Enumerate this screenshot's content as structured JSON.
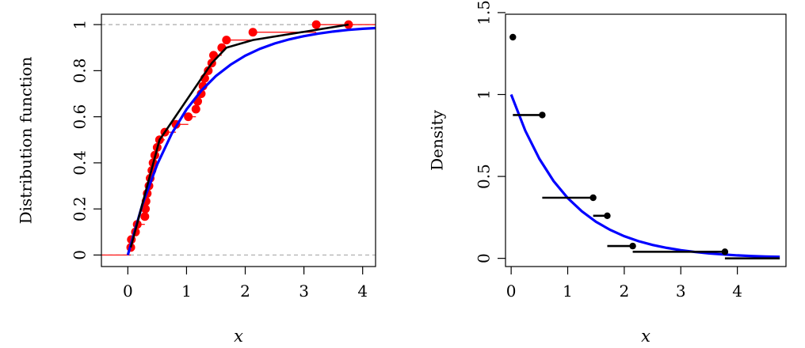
{
  "chart_data": [
    {
      "type": "line",
      "xlabel": "x",
      "ylabel": "Distribution function",
      "xlim": [
        -0.45,
        4.22
      ],
      "ylim": [
        -0.05,
        1.045
      ],
      "x_ticks": [
        0,
        1,
        2,
        3,
        4
      ],
      "y_ticks": [
        0,
        0.2,
        0.4,
        0.6,
        0.8,
        1
      ],
      "x_tick_labels": [
        "0",
        "1",
        "2",
        "3",
        "4"
      ],
      "y_tick_labels": [
        "0",
        "0.2",
        "0.4",
        "0.6",
        "0.8",
        "1"
      ],
      "reference_lines_y": [
        0,
        1
      ],
      "colors": {
        "empirical": "#ff0000",
        "fitted": "#0000ff",
        "polygon": "#000000",
        "reference": "#aaaaaa"
      },
      "series": [
        {
          "style": "red-points-and-steps",
          "x": [
            0.05,
            0.06,
            0.13,
            0.16,
            0.29,
            0.3,
            0.31,
            0.33,
            0.36,
            0.38,
            0.41,
            0.43,
            0.46,
            0.5,
            0.54,
            0.63,
            0.82,
            1.03,
            1.16,
            1.19,
            1.25,
            1.28,
            1.31,
            1.37,
            1.43,
            1.46,
            1.6,
            1.68,
            2.13,
            3.21,
            3.76
          ],
          "y": [
            0.033,
            0.067,
            0.1,
            0.133,
            0.167,
            0.2,
            0.233,
            0.267,
            0.3,
            0.333,
            0.367,
            0.4,
            0.433,
            0.467,
            0.5,
            0.533,
            0.567,
            0.6,
            0.633,
            0.667,
            0.7,
            0.733,
            0.767,
            0.8,
            0.833,
            0.867,
            0.9,
            0.933,
            0.967,
            1,
            1
          ]
        },
        {
          "style": "blue-curve",
          "x": [
            0,
            0.25,
            0.5,
            0.75,
            1,
            1.25,
            1.5,
            1.75,
            2,
            2.25,
            2.5,
            2.75,
            3,
            3.25,
            3.5,
            3.75,
            4,
            4.22
          ],
          "y": [
            0,
            0.221,
            0.393,
            0.528,
            0.632,
            0.713,
            0.777,
            0.826,
            0.865,
            0.895,
            0.918,
            0.936,
            0.95,
            0.961,
            0.97,
            0.977,
            0.982,
            0.985
          ]
        },
        {
          "style": "black-polygon",
          "x": [
            0.05,
            0.54,
            0.63,
            1.43,
            1.68,
            2.13,
            3.76
          ],
          "y": [
            0.033,
            0.5,
            0.533,
            0.833,
            0.9,
            0.933,
            1
          ]
        }
      ]
    },
    {
      "type": "line",
      "xlabel": "x",
      "ylabel": "Density",
      "xlim": [
        -0.1,
        4.86
      ],
      "ylim": [
        -0.05,
        1.49
      ],
      "x_ticks": [
        0,
        1,
        2,
        3,
        4
      ],
      "y_ticks": [
        0,
        0.5,
        1,
        1.5
      ],
      "x_tick_labels": [
        "0",
        "1",
        "2",
        "3",
        "4"
      ],
      "y_tick_labels": [
        "0",
        "0.5",
        "1",
        "1.5"
      ],
      "colors": {
        "segments": "#000000",
        "fitted": "#0000ff"
      },
      "segments": [
        {
          "x0": 0.03,
          "x1": 0.03,
          "y": 1.35
        },
        {
          "x0": 0.03,
          "x1": 0.55,
          "y": 0.875
        },
        {
          "x0": 0.55,
          "x1": 1.45,
          "y": 0.37
        },
        {
          "x0": 1.45,
          "x1": 1.7,
          "y": 0.26
        },
        {
          "x0": 1.7,
          "x1": 2.15,
          "y": 0.075
        },
        {
          "x0": 2.15,
          "x1": 3.78,
          "y": 0.04
        },
        {
          "x0": 3.78,
          "x1": 4.75,
          "y": 0.0
        }
      ],
      "series": [
        {
          "style": "blue-curve",
          "x": [
            0,
            0.25,
            0.5,
            0.75,
            1,
            1.25,
            1.5,
            1.75,
            2,
            2.25,
            2.5,
            2.75,
            3,
            3.25,
            3.5,
            3.75,
            4,
            4.25,
            4.5,
            4.75
          ],
          "y": [
            1,
            0.779,
            0.607,
            0.472,
            0.368,
            0.287,
            0.223,
            0.174,
            0.135,
            0.105,
            0.082,
            0.064,
            0.05,
            0.039,
            0.03,
            0.024,
            0.018,
            0.014,
            0.011,
            0.009
          ]
        }
      ]
    }
  ]
}
